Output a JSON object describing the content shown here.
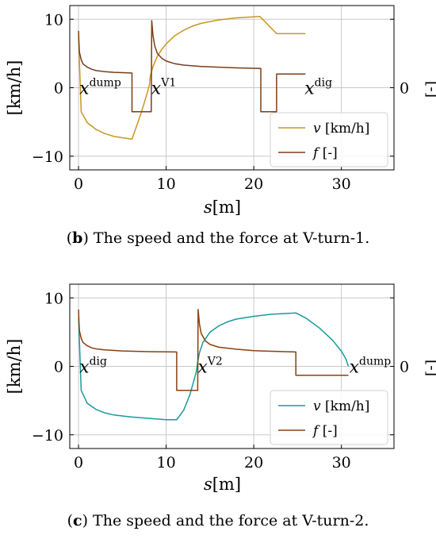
{
  "chart_data": [
    {
      "type": "line",
      "caption_letter": "b",
      "caption_text": ") The speed and the force at V-turn-1.",
      "xlabel_var": "s",
      "xlabel_unit": "[m]",
      "ylabel": "[km/h]",
      "ylabel_right": "[-]",
      "right_tick": "0",
      "xlim": [
        -1,
        36
      ],
      "ylim": [
        -12,
        12
      ],
      "xticks": [
        0,
        10,
        20,
        30
      ],
      "yticks": [
        -10,
        0,
        10
      ],
      "yticklabels": [
        "−10",
        "0",
        "10"
      ],
      "grid": true,
      "legend_position": "lower-right",
      "series": [
        {
          "name_var": "v",
          "name_unit": " [km/h]",
          "color": "#c8961e",
          "x": [
            0,
            0.3,
            1,
            2,
            3,
            4,
            5,
            6.1,
            6.6,
            7.2,
            7.9,
            8.1,
            8.2,
            8.5,
            9,
            9.5,
            10,
            11,
            12,
            13,
            14,
            16,
            18,
            20.7,
            21.7,
            22.6,
            25.9
          ],
          "y": [
            7.4,
            -3.5,
            -5.1,
            -6.1,
            -6.7,
            -7.1,
            -7.3,
            -7.5,
            -5.7,
            -3.5,
            -0.5,
            0.5,
            1.8,
            3.1,
            4.6,
            5.6,
            6.4,
            7.6,
            8.4,
            9.0,
            9.4,
            9.9,
            10.2,
            10.4,
            9.1,
            7.9,
            7.9
          ]
        },
        {
          "name_var": "f",
          "name_unit": " [-]",
          "color": "#7a3e18",
          "x": [
            0,
            0.05,
            0.1,
            0.3,
            0.5,
            1,
            1.5,
            2,
            3,
            4,
            5,
            6.1,
            6.1,
            8.3,
            8.35,
            8.5,
            8.7,
            9,
            9.5,
            10,
            11,
            12,
            14,
            16,
            18,
            20.8,
            20.8,
            22.6,
            22.6,
            25.9
          ],
          "y": [
            8.3,
            6.5,
            5.2,
            4.1,
            3.5,
            3.0,
            2.7,
            2.5,
            2.35,
            2.25,
            2.2,
            2.15,
            -3.5,
            -3.5,
            9.8,
            7.6,
            6.1,
            5.0,
            4.3,
            3.9,
            3.5,
            3.3,
            3.1,
            3.0,
            2.9,
            2.8,
            -3.5,
            -3.5,
            2.0,
            2.0
          ]
        }
      ],
      "annotations": [
        {
          "base": "x",
          "sup": "dump",
          "x": 0.1,
          "y": 0
        },
        {
          "base": "x",
          "sup": "V1",
          "x": 8.3,
          "y": 0
        },
        {
          "base": "x",
          "sup": "dig",
          "x": 25.8,
          "y": 0
        }
      ]
    },
    {
      "type": "line",
      "caption_letter": "c",
      "caption_text": ") The speed and the force at V-turn-2.",
      "xlabel_var": "s",
      "xlabel_unit": "[m]",
      "ylabel": "[km/h]",
      "ylabel_right": "[-]",
      "right_tick": "0",
      "xlim": [
        -1,
        36
      ],
      "ylim": [
        -12,
        12
      ],
      "xticks": [
        0,
        10,
        20,
        30
      ],
      "yticks": [
        -10,
        0,
        10
      ],
      "yticklabels": [
        "−10",
        "0",
        "10"
      ],
      "grid": true,
      "legend_position": "lower-right",
      "series": [
        {
          "name_var": "v",
          "name_unit": " [km/h]",
          "color": "#1a9a9c",
          "x": [
            0,
            0.3,
            1,
            2,
            3,
            4,
            6,
            8,
            10,
            11.2,
            12,
            12.7,
            13.4,
            13.6,
            13.8,
            14.2,
            15,
            16,
            17,
            18,
            20,
            22,
            24.8,
            26,
            27.5,
            29,
            30,
            30.5,
            30.8
          ],
          "y": [
            7.2,
            -3.5,
            -5.4,
            -6.3,
            -6.8,
            -7.1,
            -7.4,
            -7.6,
            -7.8,
            -7.8,
            -6.4,
            -4.2,
            -1.0,
            0.6,
            2.0,
            3.5,
            5.0,
            5.9,
            6.5,
            6.9,
            7.3,
            7.6,
            7.8,
            7.0,
            5.6,
            3.8,
            2.2,
            1.1,
            0.0
          ]
        },
        {
          "name_var": "f",
          "name_unit": " [-]",
          "color": "#8a4010",
          "x": [
            0,
            0.05,
            0.1,
            0.3,
            0.5,
            1,
            1.5,
            2,
            3,
            5,
            8,
            11.2,
            11.2,
            13.6,
            13.65,
            13.8,
            14,
            14.5,
            15,
            16,
            18,
            20,
            22,
            24.8,
            24.8,
            30.8
          ],
          "y": [
            8.3,
            6.5,
            5.2,
            4.1,
            3.5,
            3.0,
            2.7,
            2.55,
            2.4,
            2.25,
            2.15,
            2.1,
            -3.5,
            -3.5,
            8.3,
            6.2,
            4.8,
            3.7,
            3.2,
            2.8,
            2.5,
            2.3,
            2.2,
            2.1,
            -1.3,
            -1.3
          ]
        }
      ],
      "annotations": [
        {
          "base": "x",
          "sup": "dig",
          "x": 0.1,
          "y": 0
        },
        {
          "base": "x",
          "sup": "V2",
          "x": 13.6,
          "y": 0
        },
        {
          "base": "x",
          "sup": "dump",
          "x": 30.9,
          "y": 0
        }
      ]
    }
  ]
}
